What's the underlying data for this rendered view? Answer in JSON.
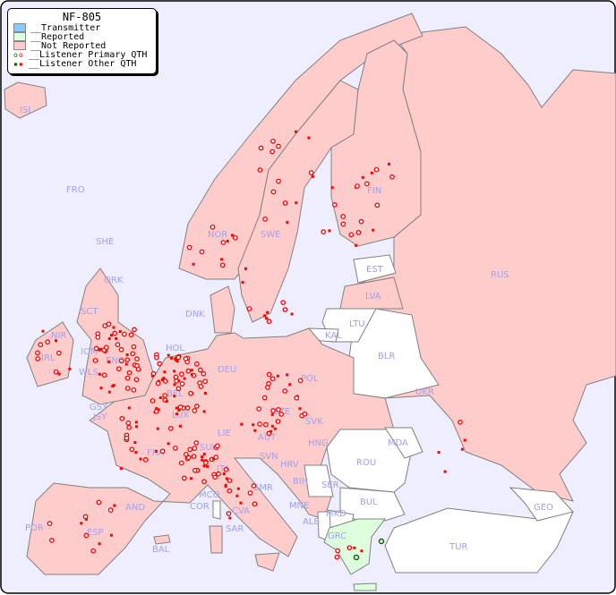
{
  "legend": {
    "title": "NF-805",
    "items": [
      {
        "label": "__Transmitter",
        "color": "#88ccff"
      },
      {
        "label": "__Reported",
        "color": "#ddffdd"
      },
      {
        "label": "__Not Reported",
        "color": "#ffcccc"
      },
      {
        "label": "__Listener Primary QTH",
        "marker": "circle"
      },
      {
        "label": "__Listener Other QTH",
        "marker": "square"
      }
    ]
  },
  "colors": {
    "sea": "#eeeeff",
    "not_reported": "#ffcccc",
    "reported": "#ddffdd",
    "no_data": "#ffffff",
    "border": "#808080",
    "listener": "#ff0000",
    "listener_reported": "#006600"
  },
  "countries": [
    "ISL",
    "FRO",
    "SHE",
    "ORK",
    "NOR",
    "SWE",
    "FIN",
    "EST",
    "LVA",
    "LTU",
    "KAL",
    "RUS",
    "BLR",
    "DNK",
    "HOL",
    "DEU",
    "POL",
    "UKR",
    "SCT",
    "NIR",
    "IRL",
    "IOM",
    "WLS",
    "ENG",
    "GSY",
    "JSY",
    "BEL",
    "LUX",
    "FRA",
    "LIE",
    "SUI",
    "AUT",
    "CZE",
    "SVK",
    "HNG",
    "MDA",
    "ROU",
    "SVN",
    "HRV",
    "BIH",
    "SER",
    "SMR",
    "ITA",
    "MCO",
    "COR",
    "CVA",
    "SAR",
    "MNE",
    "ALB",
    "MKD",
    "BUL",
    "GRC",
    "TUR",
    "GEO",
    "AND",
    "POR",
    "ESP",
    "BAL"
  ]
}
